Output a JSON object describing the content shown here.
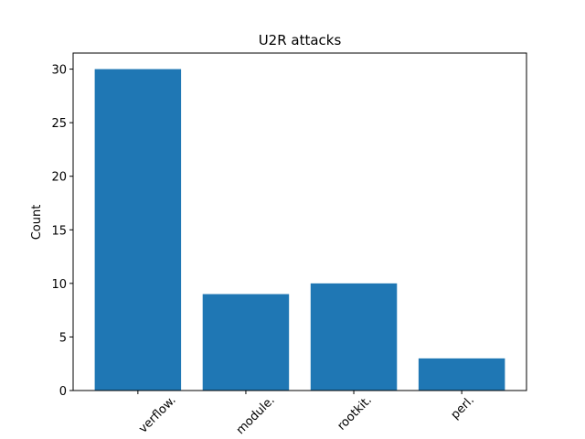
{
  "chart_data": {
    "type": "bar",
    "title": "U2R attacks",
    "y_label": "Count",
    "categories": [
      "verflow.",
      "module.",
      "rootkit.",
      "perl."
    ],
    "values": [
      30,
      9,
      10,
      3
    ],
    "color": "#1f77b4",
    "ylim": [
      0,
      31.5
    ],
    "yticks": [
      0,
      5,
      10,
      15,
      20,
      25,
      30
    ],
    "grid": false
  }
}
